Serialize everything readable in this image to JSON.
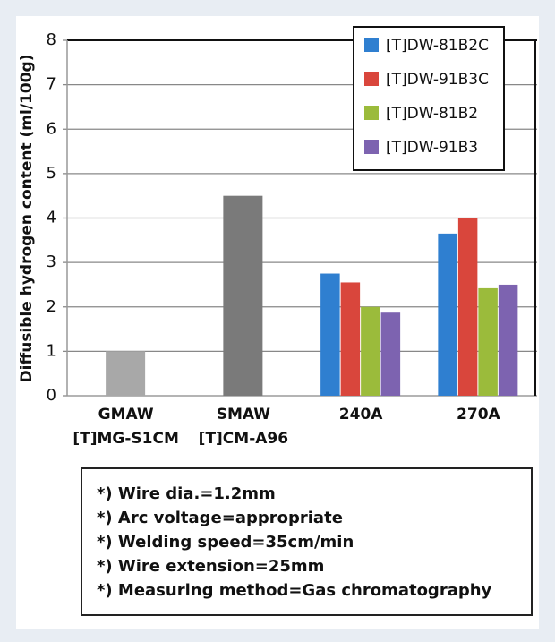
{
  "chart_data": {
    "type": "bar",
    "y_label": "Diffusible hydrogen content (ml/100g)",
    "categories": [
      [
        "GMAW",
        "[T]MG-S1CM"
      ],
      [
        "SMAW",
        "[T]CM-A96"
      ],
      [
        "240A"
      ],
      [
        "270A"
      ]
    ],
    "series": [
      {
        "name": "[T]DW-81B2C",
        "color": "#2f7fd0",
        "values": [
          null,
          null,
          2.75,
          3.65
        ]
      },
      {
        "name": "[T]DW-91B3C",
        "color": "#d9463c",
        "values": [
          null,
          null,
          2.55,
          4.0
        ]
      },
      {
        "name": "[T]DW-81B2",
        "color": "#9bbb3b",
        "values": [
          null,
          null,
          2.0,
          2.42
        ]
      },
      {
        "name": "[T]DW-91B3",
        "color": "#7d63b0",
        "values": [
          null,
          null,
          1.87,
          2.5
        ]
      },
      {
        "color": "#a8a8a8",
        "values": [
          1.0,
          null,
          null,
          null
        ]
      },
      {
        "color": "#7a7a7a",
        "values": [
          null,
          4.5,
          null,
          null
        ]
      }
    ],
    "ylim": [
      0,
      8
    ],
    "yticks": [
      0,
      1,
      2,
      3,
      4,
      5,
      6,
      7,
      8
    ],
    "grid": true,
    "legend": "upper right"
  },
  "notes": [
    "*) Wire dia.=1.2mm",
    "*) Arc voltage=appropriate",
    "*) Welding speed=35cm/min",
    "*) Wire extension=25mm",
    "*) Measuring method=Gas chromatography"
  ]
}
